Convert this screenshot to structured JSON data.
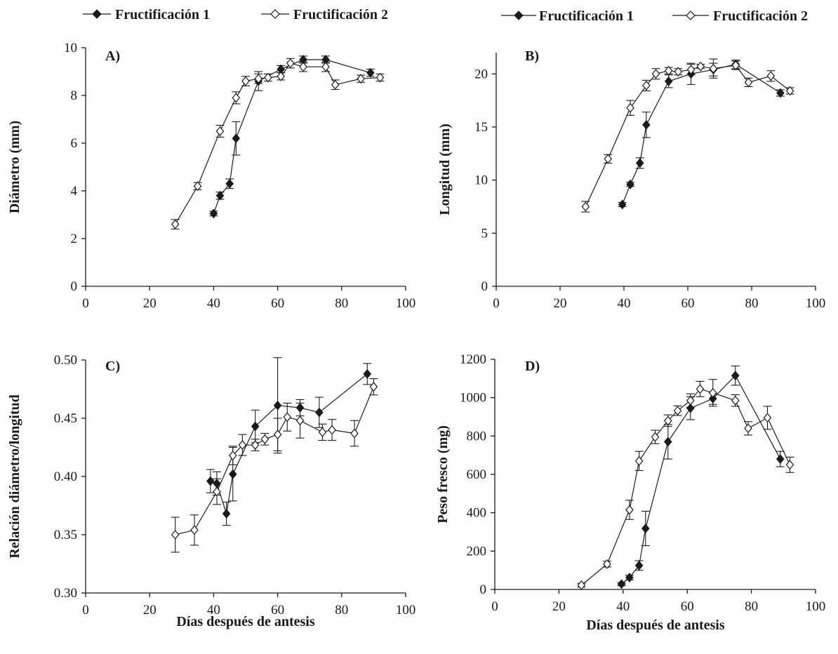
{
  "legends": {
    "left": {
      "s1": "Fructificación 1",
      "s2": "Fructificación 2"
    },
    "right": {
      "s1": "Fructificación 1",
      "s2": "Fructificación 2"
    }
  },
  "chart_data": [
    {
      "type": "line",
      "panel_label": "A)",
      "xlabel": "",
      "ylabel": "Diámetro (mm)",
      "xlim": [
        0,
        100
      ],
      "ylim": [
        0,
        10
      ],
      "xticks": [
        "0",
        "20",
        "40",
        "60",
        "80",
        "100"
      ],
      "yticks": [
        "0",
        "2",
        "4",
        "6",
        "8",
        "10"
      ],
      "series": [
        {
          "name": "Fructificación 1",
          "marker": "filled-diamond",
          "points": [
            [
              40,
              3.05,
              0.1
            ],
            [
              42,
              3.8,
              0.15
            ],
            [
              45,
              4.3,
              0.2
            ],
            [
              47,
              6.2,
              0.7
            ],
            [
              54,
              8.6,
              0.4
            ],
            [
              61,
              9.1,
              0.15
            ],
            [
              68,
              9.5,
              0.15
            ],
            [
              75,
              9.5,
              0.15
            ],
            [
              89,
              8.95,
              0.15
            ]
          ]
        },
        {
          "name": "Fructificación 2",
          "marker": "open-diamond",
          "points": [
            [
              28,
              2.6,
              0.2
            ],
            [
              35,
              4.2,
              0.15
            ],
            [
              42,
              6.5,
              0.25
            ],
            [
              47,
              7.9,
              0.25
            ],
            [
              50,
              8.6,
              0.2
            ],
            [
              54,
              8.7,
              0.2
            ],
            [
              57,
              8.75,
              0.15
            ],
            [
              61,
              8.8,
              0.15
            ],
            [
              64,
              9.35,
              0.2
            ],
            [
              68,
              9.2,
              0.2
            ],
            [
              75,
              9.2,
              0.2
            ],
            [
              78,
              8.45,
              0.2
            ],
            [
              86,
              8.7,
              0.15
            ],
            [
              92,
              8.75,
              0.15
            ]
          ]
        }
      ]
    },
    {
      "type": "line",
      "panel_label": "B)",
      "xlabel": "",
      "ylabel": "Longitud (mm)",
      "xlim": [
        0,
        100
      ],
      "ylim": [
        0,
        22
      ],
      "xticks": [
        "0",
        "20",
        "40",
        "60",
        "80",
        "100"
      ],
      "yticks": [
        "0",
        "5",
        "10",
        "15",
        "20"
      ],
      "ytick_values": [
        0,
        5,
        10,
        15,
        20
      ],
      "series": [
        {
          "name": "Fructificación 1",
          "marker": "filled-diamond",
          "points": [
            [
              39.5,
              7.7,
              0.2
            ],
            [
              42,
              9.6,
              0.2
            ],
            [
              45,
              11.6,
              0.5
            ],
            [
              47,
              15.2,
              1.2
            ],
            [
              54,
              19.3,
              0.6
            ],
            [
              61,
              20.0,
              1.0
            ],
            [
              68,
              20.4,
              0.6
            ],
            [
              75,
              20.9,
              0.4
            ],
            [
              89,
              18.2,
              0.3
            ]
          ]
        },
        {
          "name": "Fructificación 2",
          "marker": "open-diamond",
          "points": [
            [
              28,
              7.5,
              0.5
            ],
            [
              35,
              12.0,
              0.4
            ],
            [
              42,
              16.8,
              0.7
            ],
            [
              47,
              18.9,
              0.5
            ],
            [
              50,
              20.0,
              0.5
            ],
            [
              54,
              20.3,
              0.3
            ],
            [
              57,
              20.2,
              0.3
            ],
            [
              61,
              20.4,
              0.5
            ],
            [
              64,
              20.7,
              0.2
            ],
            [
              68,
              20.5,
              0.9
            ],
            [
              75,
              20.8,
              0.4
            ],
            [
              79,
              19.2,
              0.4
            ],
            [
              86,
              19.8,
              0.5
            ],
            [
              92,
              18.4,
              0.3
            ]
          ]
        }
      ]
    },
    {
      "type": "line",
      "panel_label": "C)",
      "xlabel": "Días después de antesis",
      "ylabel": "Relación diámetro/longitud",
      "xlim": [
        0,
        100
      ],
      "ylim": [
        0.3,
        0.5
      ],
      "xticks": [
        "0",
        "20",
        "40",
        "60",
        "80",
        "100"
      ],
      "yticks": [
        "0.30",
        "0.35",
        "0.40",
        "0.45",
        "0.50"
      ],
      "ytick_values": [
        0.3,
        0.35,
        0.4,
        0.45,
        0.5
      ],
      "series": [
        {
          "name": "Fructificación 1",
          "marker": "filled-diamond",
          "points": [
            [
              39,
              0.396,
              0.01
            ],
            [
              41,
              0.394,
              0.01
            ],
            [
              44,
              0.368,
              0.01
            ],
            [
              46,
              0.402,
              0.023
            ],
            [
              53,
              0.443,
              0.014
            ],
            [
              60,
              0.461,
              0.041
            ],
            [
              67,
              0.459,
              0.007
            ],
            [
              73,
              0.455,
              0.013
            ],
            [
              88,
              0.488,
              0.009
            ]
          ]
        },
        {
          "name": "Fructificación 2",
          "marker": "open-diamond",
          "points": [
            [
              28,
              0.35,
              0.015
            ],
            [
              34,
              0.354,
              0.013
            ],
            [
              41,
              0.387,
              0.011
            ],
            [
              46,
              0.418,
              0.008
            ],
            [
              49,
              0.427,
              0.009
            ],
            [
              53,
              0.427,
              0.005
            ],
            [
              56,
              0.432,
              0.005
            ],
            [
              60,
              0.436,
              0.014
            ],
            [
              63,
              0.451,
              0.012
            ],
            [
              67,
              0.448,
              0.015
            ],
            [
              74,
              0.438,
              0.007
            ],
            [
              77,
              0.44,
              0.009
            ],
            [
              84,
              0.437,
              0.011
            ],
            [
              90,
              0.477,
              0.007
            ]
          ]
        }
      ]
    },
    {
      "type": "line",
      "panel_label": "D)",
      "xlabel": "Días después de antesis",
      "ylabel": "Peso fresco (mg)",
      "xlim": [
        0,
        100
      ],
      "ylim": [
        0,
        1200
      ],
      "xticks": [
        "0",
        "20",
        "40",
        "60",
        "80",
        "100"
      ],
      "yticks": [
        "0",
        "200",
        "400",
        "600",
        "800",
        "1000",
        "1200"
      ],
      "series": [
        {
          "name": "Fructificación 1",
          "marker": "filled-diamond",
          "points": [
            [
              39.5,
              28,
              8
            ],
            [
              42,
              62,
              12
            ],
            [
              45,
              125,
              25
            ],
            [
              47,
              318,
              90
            ],
            [
              54,
              770,
              90
            ],
            [
              61,
              945,
              60
            ],
            [
              68,
              995,
              30
            ],
            [
              75,
              1115,
              50
            ],
            [
              89,
              680,
              40
            ]
          ]
        },
        {
          "name": "Fructificación 2",
          "marker": "open-diamond",
          "points": [
            [
              27,
              22,
              10
            ],
            [
              35,
              132,
              15
            ],
            [
              42,
              415,
              50
            ],
            [
              45,
              670,
              50
            ],
            [
              50,
              795,
              35
            ],
            [
              54,
              880,
              30
            ],
            [
              57,
              932,
              25
            ],
            [
              61,
              985,
              35
            ],
            [
              64,
              1045,
              40
            ],
            [
              68,
              1025,
              70
            ],
            [
              75,
              985,
              30
            ],
            [
              79,
              840,
              35
            ],
            [
              85,
              895,
              60
            ],
            [
              92,
              650,
              40
            ]
          ]
        }
      ]
    }
  ]
}
